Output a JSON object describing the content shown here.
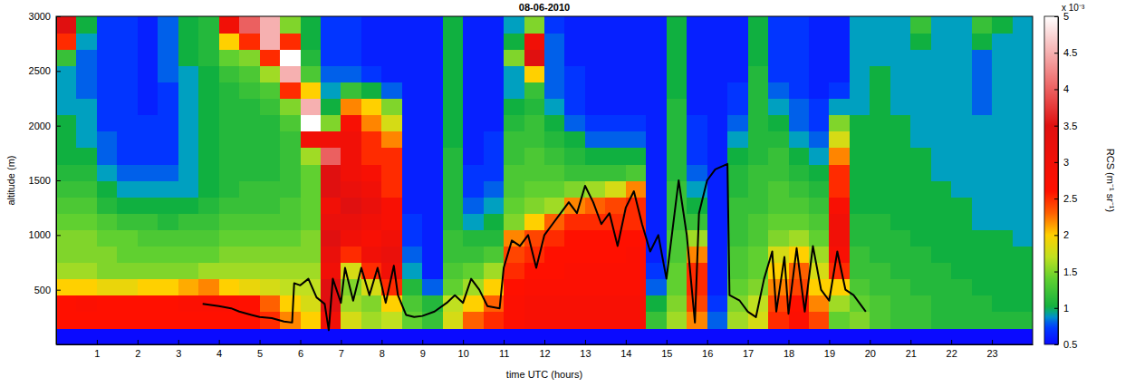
{
  "chart_data": {
    "type": "heatmap",
    "title": "08-06-2010",
    "x_label": "time UTC (hours)",
    "y_label": "altitude (m)",
    "xlim": [
      0,
      24
    ],
    "ylim": [
      0,
      3000
    ],
    "xticks": [
      1,
      2,
      3,
      4,
      5,
      6,
      7,
      8,
      9,
      10,
      11,
      12,
      13,
      14,
      15,
      16,
      17,
      18,
      19,
      20,
      21,
      22,
      23
    ],
    "yticks": [
      500,
      1000,
      1500,
      2000,
      2500,
      3000
    ],
    "x_edges": [
      0,
      0.5,
      1,
      1.5,
      2,
      2.5,
      3,
      3.5,
      4,
      4.5,
      5,
      5.5,
      6,
      6.5,
      7,
      7.5,
      8,
      8.5,
      9,
      9.5,
      10,
      10.5,
      11,
      11.5,
      12,
      12.5,
      13,
      13.5,
      14,
      14.5,
      15,
      15.5,
      16,
      16.5,
      17,
      17.5,
      18,
      18.5,
      19,
      19.5,
      20,
      20.5,
      21,
      21.5,
      22,
      22.5,
      23,
      23.5,
      24
    ],
    "y_edges": [
      0,
      150,
      300,
      450,
      600,
      750,
      900,
      1050,
      1200,
      1350,
      1500,
      1650,
      1800,
      1950,
      2100,
      2250,
      2400,
      2550,
      2700,
      2850,
      3000
    ],
    "z": [
      [
        0.5,
        2.6,
        2.6,
        2.0,
        1.6,
        1.5,
        1.5,
        1.4,
        1.3,
        1.2,
        1.1,
        1.0,
        1.0,
        1.0,
        0.9,
        0.9,
        0.9,
        1.2,
        2.5,
        3.5
      ],
      [
        0.5,
        2.6,
        2.7,
        2.0,
        1.6,
        1.5,
        1.5,
        1.4,
        1.3,
        1.2,
        1.1,
        1.0,
        0.9,
        0.9,
        0.9,
        0.8,
        0.8,
        0.8,
        0.9,
        1.0
      ],
      [
        0.5,
        2.6,
        2.6,
        1.9,
        1.5,
        1.5,
        1.4,
        1.3,
        1.1,
        1.0,
        0.9,
        0.8,
        0.8,
        0.7,
        0.7,
        0.7,
        0.7,
        0.7,
        0.7,
        0.7
      ],
      [
        0.5,
        2.6,
        2.6,
        1.9,
        1.5,
        1.4,
        1.4,
        1.2,
        1.0,
        0.9,
        0.8,
        0.7,
        0.7,
        0.7,
        0.7,
        0.7,
        0.7,
        0.7,
        0.7,
        0.7
      ],
      [
        0.5,
        2.6,
        2.6,
        2.0,
        1.5,
        1.4,
        1.3,
        1.2,
        1.0,
        0.9,
        0.8,
        0.7,
        0.7,
        0.7,
        0.6,
        0.6,
        0.6,
        0.6,
        0.6,
        0.6
      ],
      [
        0.5,
        2.6,
        2.6,
        2.0,
        1.5,
        1.4,
        1.3,
        1.1,
        1.0,
        0.9,
        0.8,
        0.7,
        0.7,
        0.7,
        0.7,
        0.7,
        0.8,
        0.8,
        0.8,
        0.8
      ],
      [
        0.5,
        2.6,
        2.7,
        2.1,
        1.5,
        1.4,
        1.3,
        1.2,
        1.0,
        0.9,
        0.9,
        0.9,
        0.9,
        0.9,
        0.9,
        0.9,
        0.9,
        1.0,
        1.0,
        1.0
      ],
      [
        0.5,
        2.6,
        2.7,
        2.2,
        1.6,
        1.4,
        1.3,
        1.2,
        1.1,
        1.0,
        1.0,
        1.0,
        1.0,
        1.0,
        1.0,
        1.0,
        1.0,
        1.1,
        1.1,
        1.1
      ],
      [
        0.5,
        2.6,
        2.7,
        2.0,
        1.6,
        1.5,
        1.4,
        1.3,
        1.2,
        1.1,
        1.1,
        1.1,
        1.1,
        1.1,
        1.1,
        1.1,
        1.2,
        1.4,
        2.0,
        3.0
      ],
      [
        0.5,
        2.6,
        2.6,
        1.9,
        1.6,
        1.5,
        1.4,
        1.3,
        1.2,
        1.2,
        1.1,
        1.1,
        1.1,
        1.1,
        1.1,
        1.2,
        1.3,
        1.5,
        2.5,
        4.0
      ],
      [
        0.5,
        2.5,
        2.3,
        1.8,
        1.6,
        1.5,
        1.4,
        1.3,
        1.2,
        1.2,
        1.1,
        1.1,
        1.1,
        1.1,
        1.2,
        1.3,
        1.6,
        2.5,
        4.5,
        4.5
      ],
      [
        0.5,
        2.2,
        2.0,
        1.7,
        1.6,
        1.5,
        1.4,
        1.3,
        1.3,
        1.2,
        1.2,
        1.2,
        1.2,
        1.3,
        1.5,
        2.5,
        4.5,
        5.0,
        2.5,
        1.5
      ],
      [
        0.5,
        2.0,
        1.8,
        1.7,
        1.6,
        1.5,
        1.5,
        1.4,
        1.4,
        1.4,
        1.4,
        1.6,
        3.0,
        5.0,
        4.5,
        2.0,
        1.3,
        1.1,
        1.0,
        1.0
      ],
      [
        0.5,
        3.0,
        3.5,
        3.5,
        3.0,
        3.2,
        3.5,
        3.2,
        3.0,
        3.5,
        3.5,
        4.0,
        3.0,
        1.5,
        1.0,
        0.9,
        0.8,
        0.7,
        0.7,
        0.7
      ],
      [
        0.5,
        1.8,
        1.6,
        1.5,
        1.8,
        2.5,
        3.0,
        3.2,
        3.5,
        3.2,
        3.0,
        3.0,
        3.0,
        2.8,
        2.2,
        1.2,
        0.8,
        0.7,
        0.7,
        0.7
      ],
      [
        0.5,
        1.6,
        1.5,
        1.8,
        2.5,
        3.0,
        2.8,
        3.0,
        3.2,
        3.0,
        2.8,
        2.5,
        2.5,
        2.2,
        2.0,
        1.0,
        0.7,
        0.6,
        0.6,
        0.6
      ],
      [
        0.5,
        1.7,
        2.0,
        2.5,
        3.0,
        3.2,
        3.0,
        2.8,
        2.8,
        2.5,
        2.5,
        2.5,
        2.2,
        1.8,
        1.5,
        0.8,
        0.6,
        0.6,
        0.6,
        0.6
      ],
      [
        0.5,
        1.4,
        1.3,
        1.1,
        0.9,
        0.8,
        0.7,
        0.7,
        0.6,
        0.6,
        0.6,
        0.6,
        0.6,
        0.6,
        0.6,
        0.6,
        0.6,
        0.6,
        0.6,
        0.6
      ],
      [
        0.5,
        1.2,
        1.1,
        0.8,
        0.6,
        0.6,
        0.6,
        0.6,
        0.6,
        0.6,
        0.6,
        0.6,
        0.6,
        0.6,
        0.6,
        0.6,
        0.6,
        0.6,
        0.6,
        0.6
      ],
      [
        0.5,
        1.8,
        1.7,
        1.4,
        1.3,
        1.2,
        1.2,
        1.1,
        1.1,
        1.1,
        1.1,
        1.1,
        1.0,
        1.0,
        1.0,
        1.0,
        1.0,
        1.0,
        1.0,
        1.0
      ],
      [
        0.5,
        2.3,
        2.0,
        1.6,
        1.4,
        1.2,
        1.1,
        0.9,
        0.8,
        0.7,
        0.7,
        0.6,
        0.6,
        0.6,
        0.6,
        0.6,
        0.6,
        0.6,
        0.6,
        0.6
      ],
      [
        0.5,
        2.5,
        2.3,
        2.0,
        1.6,
        1.3,
        1.1,
        1.0,
        0.9,
        0.8,
        0.7,
        0.7,
        0.7,
        0.6,
        0.6,
        0.6,
        0.6,
        0.6,
        0.6,
        0.6
      ],
      [
        0.5,
        2.7,
        2.7,
        2.6,
        2.5,
        2.4,
        2.2,
        1.5,
        1.4,
        1.3,
        1.3,
        1.2,
        1.2,
        1.1,
        1.0,
        0.9,
        0.9,
        1.5,
        1.0,
        0.9
      ],
      [
        0.5,
        2.8,
        2.8,
        2.7,
        2.6,
        2.5,
        2.4,
        2.0,
        1.5,
        1.4,
        1.3,
        1.3,
        1.2,
        1.2,
        1.1,
        1.2,
        2.0,
        3.5,
        3.0,
        1.5
      ],
      [
        0.5,
        2.8,
        2.8,
        2.7,
        2.6,
        2.6,
        2.5,
        2.3,
        1.6,
        1.4,
        1.3,
        1.2,
        1.1,
        1.0,
        0.9,
        0.8,
        0.8,
        0.8,
        0.8,
        0.7
      ],
      [
        0.5,
        2.8,
        2.8,
        2.7,
        2.7,
        2.6,
        2.6,
        2.5,
        2.2,
        1.5,
        1.2,
        1.1,
        1.0,
        0.8,
        0.7,
        0.7,
        0.7,
        0.6,
        0.6,
        0.6
      ],
      [
        0.5,
        2.8,
        2.8,
        2.7,
        2.7,
        2.6,
        2.6,
        2.5,
        2.3,
        1.6,
        1.2,
        1.0,
        0.8,
        0.7,
        0.6,
        0.6,
        0.6,
        0.6,
        0.6,
        0.6
      ],
      [
        0.5,
        2.8,
        2.8,
        2.7,
        2.7,
        2.6,
        2.6,
        2.5,
        2.4,
        1.8,
        1.2,
        1.0,
        0.8,
        0.7,
        0.6,
        0.6,
        0.6,
        0.6,
        0.6,
        0.6
      ],
      [
        0.5,
        2.8,
        2.8,
        2.7,
        2.7,
        2.7,
        2.6,
        2.5,
        2.5,
        2.2,
        1.3,
        1.0,
        0.8,
        0.7,
        0.6,
        0.6,
        0.6,
        0.6,
        0.6,
        0.6
      ],
      [
        0.5,
        1.2,
        1.0,
        0.8,
        0.7,
        0.6,
        0.6,
        0.6,
        0.6,
        0.6,
        0.6,
        0.6,
        0.6,
        0.6,
        0.6,
        0.6,
        0.6,
        0.6,
        0.6,
        0.6
      ],
      [
        0.5,
        1.6,
        1.5,
        1.4,
        1.4,
        1.3,
        1.3,
        1.2,
        1.2,
        1.2,
        1.1,
        1.1,
        1.1,
        1.1,
        1.1,
        1.0,
        1.0,
        1.0,
        1.0,
        1.0
      ],
      [
        0.5,
        2.2,
        2.4,
        2.5,
        2.5,
        2.2,
        1.6,
        1.2,
        1.0,
        0.9,
        0.8,
        0.7,
        0.7,
        0.7,
        0.6,
        0.6,
        0.6,
        0.6,
        0.6,
        0.6
      ],
      [
        0.5,
        0.8,
        0.7,
        0.6,
        0.6,
        0.6,
        0.6,
        0.6,
        0.6,
        0.6,
        0.6,
        0.6,
        0.6,
        0.6,
        0.6,
        0.6,
        0.6,
        0.6,
        0.6,
        0.6
      ],
      [
        0.5,
        1.6,
        1.5,
        1.4,
        1.3,
        1.3,
        1.2,
        1.2,
        1.2,
        1.1,
        1.1,
        1.0,
        0.9,
        0.8,
        0.7,
        0.7,
        0.6,
        0.6,
        0.6,
        0.6
      ],
      [
        0.5,
        1.8,
        1.7,
        1.5,
        1.4,
        1.4,
        1.3,
        1.3,
        1.2,
        1.2,
        1.2,
        1.1,
        1.1,
        1.1,
        1.1,
        1.1,
        1.1,
        1.0,
        1.0,
        1.0
      ],
      [
        0.5,
        2.5,
        2.4,
        2.2,
        2.0,
        1.8,
        1.5,
        1.4,
        1.3,
        1.3,
        1.2,
        1.2,
        1.1,
        1.0,
        0.9,
        0.8,
        0.7,
        0.7,
        0.7,
        0.7
      ],
      [
        0.5,
        2.7,
        2.6,
        2.4,
        2.3,
        2.0,
        1.6,
        1.4,
        1.3,
        1.2,
        1.1,
        1.0,
        0.9,
        0.8,
        0.8,
        0.7,
        0.7,
        0.7,
        0.7,
        0.7
      ],
      [
        0.5,
        2.4,
        2.2,
        2.0,
        1.8,
        1.6,
        1.4,
        1.3,
        1.2,
        1.1,
        1.0,
        0.9,
        0.8,
        0.7,
        0.7,
        0.6,
        0.6,
        0.6,
        0.6,
        0.6
      ],
      [
        0.5,
        1.4,
        1.6,
        2.0,
        2.5,
        2.8,
        3.0,
        3.0,
        2.8,
        2.5,
        2.5,
        2.2,
        1.8,
        1.5,
        0.9,
        0.7,
        0.6,
        0.6,
        0.6,
        0.6
      ],
      [
        0.5,
        1.5,
        1.4,
        1.3,
        1.2,
        1.2,
        1.1,
        1.1,
        1.0,
        1.0,
        1.0,
        1.0,
        1.0,
        1.0,
        0.9,
        0.9,
        0.9,
        0.9,
        0.9,
        0.9
      ],
      [
        0.5,
        1.3,
        1.3,
        1.2,
        1.2,
        1.1,
        1.1,
        1.1,
        1.0,
        1.0,
        1.0,
        1.0,
        1.0,
        1.0,
        1.0,
        1.0,
        1.0,
        0.9,
        0.9,
        0.9
      ],
      [
        0.5,
        1.2,
        1.2,
        1.2,
        1.1,
        1.1,
        1.1,
        1.0,
        1.0,
        1.0,
        1.0,
        1.0,
        1.0,
        1.0,
        0.9,
        0.9,
        0.9,
        0.9,
        0.9,
        0.9
      ],
      [
        0.5,
        1.2,
        1.2,
        1.1,
        1.1,
        1.1,
        1.0,
        1.0,
        1.0,
        1.0,
        1.0,
        1.0,
        0.9,
        0.9,
        0.9,
        0.9,
        0.9,
        0.9,
        1.0,
        1.2
      ],
      [
        0.5,
        1.1,
        1.1,
        1.1,
        1.1,
        1.0,
        1.0,
        1.0,
        1.0,
        1.0,
        0.9,
        0.9,
        0.9,
        0.9,
        0.9,
        0.9,
        0.9,
        0.9,
        0.9,
        0.9
      ],
      [
        0.5,
        1.1,
        1.1,
        1.1,
        1.0,
        1.0,
        1.0,
        1.0,
        1.0,
        0.9,
        0.9,
        0.9,
        0.9,
        0.9,
        0.9,
        0.9,
        0.9,
        0.9,
        0.9,
        0.9
      ],
      [
        0.5,
        1.1,
        1.1,
        1.0,
        1.0,
        1.0,
        1.0,
        0.9,
        0.9,
        0.9,
        0.9,
        0.9,
        0.9,
        0.9,
        0.8,
        0.8,
        0.8,
        0.8,
        1.0,
        1.2
      ],
      [
        0.5,
        1.1,
        1.0,
        1.0,
        1.0,
        1.0,
        1.0,
        0.9,
        0.9,
        0.9,
        0.9,
        0.9,
        0.9,
        0.9,
        0.9,
        0.9,
        0.9,
        0.9,
        0.9,
        1.0
      ],
      [
        0.5,
        1.1,
        1.0,
        1.0,
        1.0,
        1.0,
        0.9,
        0.9,
        0.9,
        0.9,
        0.9,
        0.9,
        0.9,
        0.9,
        0.9,
        0.9,
        0.9,
        0.9,
        0.9,
        0.9
      ]
    ],
    "colorbar": {
      "label": "RCS (m⁻¹ sr⁻¹)",
      "multiplier": "x 10⁻³",
      "range": [
        0.5,
        5
      ],
      "ticks": [
        0.5,
        1,
        1.5,
        2,
        2.5,
        3,
        3.5,
        4,
        4.5,
        5
      ]
    },
    "series": [
      {
        "type": "line",
        "color": "#000000",
        "x": [
          3.6,
          3.8,
          4.0,
          4.3,
          4.5,
          4.8,
          5.0,
          5.3,
          5.6,
          5.8,
          5.85,
          6.0,
          6.2,
          6.4,
          6.6,
          6.7,
          6.8,
          7.0,
          7.1,
          7.3,
          7.5,
          7.7,
          7.9,
          8.1,
          8.3,
          8.4,
          8.6,
          8.8,
          9.0,
          9.3,
          9.6,
          9.8,
          10.0,
          10.2,
          10.4,
          10.6,
          10.9,
          11.0,
          11.2,
          11.4,
          11.6,
          11.8,
          12.0,
          12.2,
          12.4,
          12.6,
          12.8,
          13.0,
          13.2,
          13.4,
          13.6,
          13.8,
          14.0,
          14.2,
          14.4,
          14.6,
          14.8,
          15.0,
          15.3,
          15.5,
          15.7,
          15.8,
          16.0,
          16.2,
          16.5,
          16.55,
          16.8,
          17.0,
          17.2,
          17.4,
          17.6,
          17.7,
          17.9,
          18.0,
          18.2,
          18.4,
          18.6,
          18.8,
          19.0,
          19.2,
          19.4,
          19.6,
          19.9
        ],
        "values": [
          370,
          360,
          350,
          330,
          300,
          270,
          250,
          240,
          210,
          200,
          560,
          540,
          600,
          430,
          370,
          130,
          600,
          380,
          700,
          400,
          700,
          450,
          700,
          380,
          720,
          450,
          270,
          250,
          260,
          300,
          380,
          450,
          380,
          600,
          500,
          350,
          330,
          700,
          950,
          900,
          1000,
          700,
          1000,
          1100,
          1200,
          1300,
          1200,
          1450,
          1300,
          1100,
          1200,
          900,
          1250,
          1400,
          1100,
          850,
          1000,
          600,
          1500,
          1000,
          200,
          1200,
          1500,
          1600,
          1650,
          450,
          400,
          300,
          250,
          600,
          850,
          300,
          800,
          280,
          880,
          300,
          900,
          500,
          400,
          850,
          500,
          450,
          300
        ]
      }
    ]
  }
}
